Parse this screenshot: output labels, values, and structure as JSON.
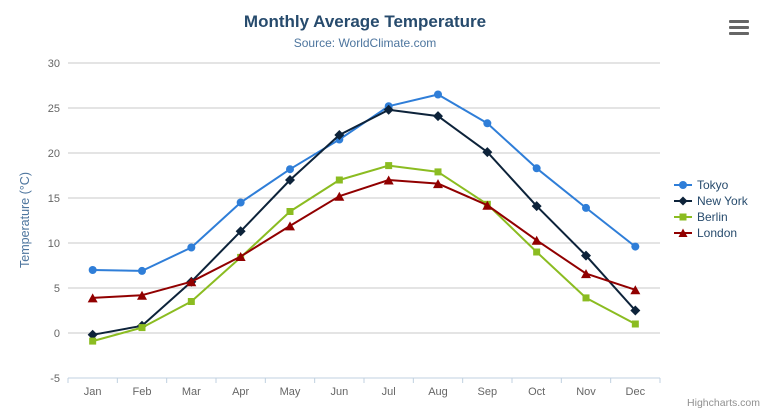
{
  "chart_data": {
    "type": "line",
    "title": "Monthly Average Temperature",
    "subtitle": "Source: WorldClimate.com",
    "categories": [
      "Jan",
      "Feb",
      "Mar",
      "Apr",
      "May",
      "Jun",
      "Jul",
      "Aug",
      "Sep",
      "Oct",
      "Nov",
      "Dec"
    ],
    "series": [
      {
        "name": "Tokyo",
        "color": "#2f7ed8",
        "marker": "circle",
        "values": [
          7.0,
          6.9,
          9.5,
          14.5,
          18.2,
          21.5,
          25.2,
          26.5,
          23.3,
          18.3,
          13.9,
          9.6
        ]
      },
      {
        "name": "New York",
        "color": "#0d233a",
        "marker": "diamond",
        "values": [
          -0.2,
          0.8,
          5.7,
          11.3,
          17.0,
          22.0,
          24.8,
          24.1,
          20.1,
          14.1,
          8.6,
          2.5
        ]
      },
      {
        "name": "Berlin",
        "color": "#8bbc21",
        "marker": "square",
        "values": [
          -0.9,
          0.6,
          3.5,
          8.4,
          13.5,
          17.0,
          18.6,
          17.9,
          14.3,
          9.0,
          3.9,
          1.0
        ]
      },
      {
        "name": "London",
        "color": "#910000",
        "marker": "triangle",
        "values": [
          3.9,
          4.2,
          5.7,
          8.5,
          11.9,
          15.2,
          17.0,
          16.6,
          14.2,
          10.3,
          6.6,
          4.8
        ]
      }
    ],
    "xlabel": "",
    "ylabel": "Temperature (°C)",
    "ylim": [
      -5,
      30
    ],
    "ytick_step": 5,
    "grid": true,
    "legend_position": "right",
    "style": {
      "grid_color": "#c8c8c8",
      "axis_line_color": "#c0d0e0",
      "tick_color": "#c0d0e0",
      "axis_label_color": "#666666",
      "title_color": "#274b6d",
      "subtitle_color": "#4d759e",
      "legend_text_color": "#274b6d"
    }
  },
  "credits": {
    "label": "Highcharts.com"
  },
  "menu": {
    "name": "chart context menu"
  }
}
